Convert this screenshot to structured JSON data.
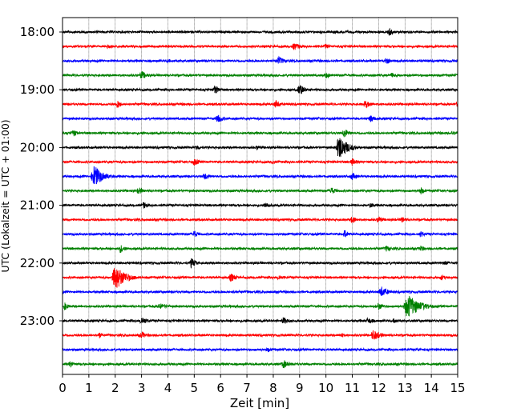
{
  "chart_data": {
    "type": "line",
    "title": "",
    "xlabel": "Zeit  [min]",
    "ylabel": "UTC (Lokalzeit = UTC + 01:00)",
    "xlim": [
      0,
      15
    ],
    "x_ticks": [
      "0",
      "1",
      "2",
      "3",
      "4",
      "5",
      "6",
      "7",
      "8",
      "9",
      "10",
      "11",
      "12",
      "13",
      "14",
      "15"
    ],
    "y_ticks": [
      "18:00",
      "19:00",
      "20:00",
      "21:00",
      "22:00",
      "23:00"
    ],
    "grid": "vertical dotted",
    "trace_interval_min": 15,
    "colors": [
      "#000000",
      "#ff0000",
      "#0000ff",
      "#008000"
    ],
    "traces": [
      {
        "start": "18:00",
        "color": "#000000",
        "events": [
          [
            12.4,
            0.3,
            0.25
          ]
        ]
      },
      {
        "start": "18:15",
        "color": "#ff0000",
        "events": [
          [
            1.7,
            0.2,
            0.2
          ],
          [
            8.8,
            0.3,
            0.4
          ],
          [
            10.0,
            0.2,
            0.2
          ]
        ]
      },
      {
        "start": "18:30",
        "color": "#0000ff",
        "events": [
          [
            8.2,
            0.35,
            0.4
          ],
          [
            12.3,
            0.35,
            0.1
          ],
          [
            4.0,
            0.15,
            0.2
          ]
        ]
      },
      {
        "start": "18:45",
        "color": "#008000",
        "events": [
          [
            3.0,
            0.35,
            0.3
          ],
          [
            10.0,
            0.25,
            0.3
          ],
          [
            12.5,
            0.2,
            0.3
          ]
        ]
      },
      {
        "start": "19:00",
        "color": "#000000",
        "events": [
          [
            5.8,
            0.4,
            0.1
          ],
          [
            9.0,
            0.45,
            0.3
          ]
        ]
      },
      {
        "start": "19:15",
        "color": "#ff0000",
        "events": [
          [
            2.1,
            0.35,
            0.1
          ],
          [
            8.1,
            0.35,
            0.2
          ],
          [
            11.5,
            0.3,
            0.4
          ],
          [
            15.0,
            0.3,
            0.1
          ]
        ]
      },
      {
        "start": "19:30",
        "color": "#0000ff",
        "events": [
          [
            5.9,
            0.35,
            0.3
          ],
          [
            11.7,
            0.3,
            0.2
          ]
        ]
      },
      {
        "start": "19:45",
        "color": "#008000",
        "events": [
          [
            0.4,
            0.3,
            0.2
          ],
          [
            10.7,
            0.4,
            0.2
          ],
          [
            14.8,
            0.2,
            0.2
          ]
        ]
      },
      {
        "start": "20:00",
        "color": "#000000",
        "events": [
          [
            10.5,
            1.0,
            0.6
          ],
          [
            5.1,
            0.25,
            0.2
          ],
          [
            7.4,
            0.2,
            0.2
          ]
        ]
      },
      {
        "start": "20:15",
        "color": "#ff0000",
        "events": [
          [
            5.0,
            0.3,
            0.3
          ],
          [
            11.0,
            0.3,
            0.3
          ],
          [
            8.0,
            0.15,
            0.2
          ]
        ]
      },
      {
        "start": "20:30",
        "color": "#0000ff",
        "events": [
          [
            1.2,
            0.9,
            0.6
          ],
          [
            5.4,
            0.3,
            0.3
          ],
          [
            11.0,
            0.3,
            0.2
          ]
        ]
      },
      {
        "start": "20:45",
        "color": "#008000",
        "events": [
          [
            2.9,
            0.3,
            0.2
          ],
          [
            10.2,
            0.3,
            0.3
          ],
          [
            13.6,
            0.3,
            0.2
          ]
        ]
      },
      {
        "start": "21:00",
        "color": "#000000",
        "events": [
          [
            3.1,
            0.3,
            0.1
          ],
          [
            7.7,
            0.25,
            0.4
          ],
          [
            11.7,
            0.2,
            0.2
          ]
        ]
      },
      {
        "start": "21:15",
        "color": "#ff0000",
        "events": [
          [
            11.0,
            0.3,
            0.2
          ],
          [
            12.0,
            0.3,
            0.2
          ],
          [
            12.9,
            0.25,
            0.1
          ]
        ]
      },
      {
        "start": "21:30",
        "color": "#0000ff",
        "events": [
          [
            5.0,
            0.3,
            0.2
          ],
          [
            10.7,
            0.35,
            0.1
          ],
          [
            13.6,
            0.25,
            0.3
          ]
        ]
      },
      {
        "start": "21:45",
        "color": "#008000",
        "events": [
          [
            2.2,
            0.35,
            0.2
          ],
          [
            12.3,
            0.25,
            0.3
          ],
          [
            13.6,
            0.3,
            0.1
          ]
        ]
      },
      {
        "start": "22:00",
        "color": "#000000",
        "events": [
          [
            4.9,
            0.4,
            0.2
          ],
          [
            14.5,
            0.2,
            0.2
          ]
        ]
      },
      {
        "start": "22:15",
        "color": "#ff0000",
        "events": [
          [
            2.0,
            1.0,
            0.8
          ],
          [
            6.4,
            0.35,
            0.3
          ],
          [
            8.2,
            0.25,
            0.2
          ],
          [
            14.4,
            0.25,
            0.1
          ]
        ]
      },
      {
        "start": "22:30",
        "color": "#0000ff",
        "events": [
          [
            12.1,
            0.45,
            0.4
          ],
          [
            6.5,
            0.15,
            0.3
          ]
        ]
      },
      {
        "start": "22:45",
        "color": "#008000",
        "events": [
          [
            13.1,
            0.95,
            1.0
          ],
          [
            3.7,
            0.25,
            0.6
          ],
          [
            12.0,
            0.3,
            0.3
          ],
          [
            0.1,
            0.3,
            0.1
          ]
        ]
      },
      {
        "start": "23:00",
        "color": "#000000",
        "events": [
          [
            3.0,
            0.35,
            0.3
          ],
          [
            8.4,
            0.3,
            0.3
          ],
          [
            11.6,
            0.25,
            0.4
          ],
          [
            12.6,
            0.2,
            0.2
          ]
        ]
      },
      {
        "start": "23:15",
        "color": "#ff0000",
        "events": [
          [
            11.8,
            0.45,
            0.5
          ],
          [
            3.0,
            0.3,
            0.3
          ],
          [
            1.4,
            0.25,
            0.1
          ],
          [
            10.6,
            0.2,
            0.1
          ]
        ]
      },
      {
        "start": "23:30",
        "color": "#0000ff",
        "events": [
          [
            7.8,
            0.2,
            0.3
          ],
          [
            13.5,
            0.15,
            0.3
          ]
        ]
      },
      {
        "start": "23:45",
        "color": "#008000",
        "events": [
          [
            0.3,
            0.3,
            0.1
          ],
          [
            8.4,
            0.35,
            0.3
          ]
        ]
      }
    ]
  }
}
